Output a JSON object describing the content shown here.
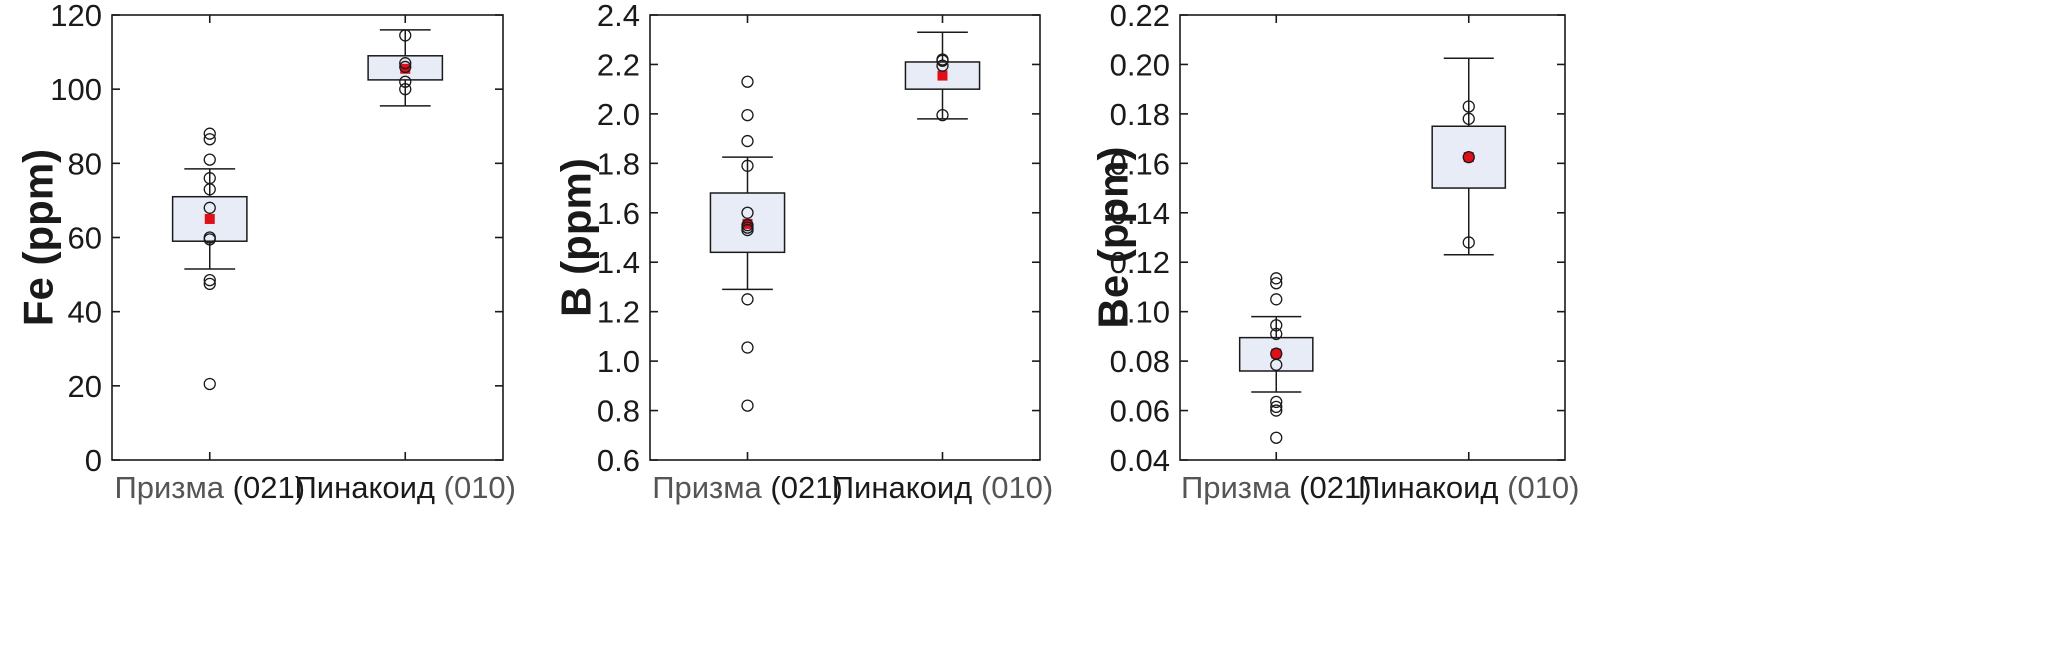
{
  "colors": {
    "box_fill": "#e7ecf6",
    "box_stroke": "#1a1a1a",
    "mean_marker": "#e0101a",
    "outlier_stroke": "#1a1a1a",
    "axis": "#1a1a1a",
    "category_a_text": "#555555"
  },
  "chart_data": [
    {
      "type": "box",
      "ylabel": "Fe (ppm)",
      "ylim": [
        0,
        120
      ],
      "yticks": [
        0,
        20,
        40,
        60,
        80,
        100,
        120
      ],
      "ytick_labels": [
        "0",
        "20",
        "40",
        "60",
        "80",
        "100",
        "120"
      ],
      "categories": [
        {
          "name": "Призма",
          "code": "(021)"
        },
        {
          "name": "Пинакоид",
          "code": "(010)"
        }
      ],
      "boxes": [
        {
          "whisker_low": 51.5,
          "q1": 59,
          "q3": 71,
          "whisker_high": 78.5,
          "mean": 65,
          "points": [
            20.5,
            47.5,
            48.5,
            59.5,
            60,
            68,
            73,
            76,
            81,
            86.5,
            88
          ]
        },
        {
          "whisker_low": 95.5,
          "q1": 102.5,
          "q3": 109,
          "whisker_high": 116,
          "mean": 105.5,
          "points": [
            100,
            102,
            106,
            107,
            114.5
          ]
        }
      ]
    },
    {
      "type": "box",
      "ylabel": "B (ppm)",
      "ylim": [
        0.6,
        2.4
      ],
      "yticks": [
        0.6,
        0.8,
        1.0,
        1.2,
        1.4,
        1.6,
        1.8,
        2.0,
        2.2,
        2.4
      ],
      "ytick_labels": [
        "0.6",
        "0.8",
        "1.0",
        "1.2",
        "1.4",
        "1.6",
        "1.8",
        "2.0",
        "2.2",
        "2.4"
      ],
      "categories": [
        {
          "name": "Призма",
          "code": "(021)"
        },
        {
          "name": "Пинакоид",
          "code": "(010)"
        }
      ],
      "boxes": [
        {
          "whisker_low": 1.29,
          "q1": 1.44,
          "q3": 1.68,
          "whisker_high": 1.825,
          "mean": 1.555,
          "points": [
            0.82,
            1.055,
            1.25,
            1.53,
            1.54,
            1.55,
            1.6,
            1.79,
            1.89,
            1.995,
            2.13
          ]
        },
        {
          "whisker_low": 1.98,
          "q1": 2.1,
          "q3": 2.21,
          "whisker_high": 2.33,
          "mean": 2.155,
          "points": [
            1.995,
            2.195,
            2.215,
            2.22
          ]
        }
      ]
    },
    {
      "type": "box",
      "ylabel": "Be (ppm)",
      "ylim": [
        0.04,
        0.22
      ],
      "yticks": [
        0.04,
        0.06,
        0.08,
        0.1,
        0.12,
        0.14,
        0.16,
        0.18,
        0.2,
        0.22
      ],
      "ytick_labels": [
        "0.04",
        "0.06",
        "0.08",
        "0.10",
        "0.12",
        "0.14",
        "0.16",
        "0.18",
        "0.20",
        "0.22"
      ],
      "categories": [
        {
          "name": "Призма",
          "code": "(021)"
        },
        {
          "name": "Пинакоид",
          "code": "(010)"
        }
      ],
      "boxes": [
        {
          "whisker_low": 0.0675,
          "q1": 0.076,
          "q3": 0.0895,
          "whisker_high": 0.098,
          "mean": 0.083,
          "points": [
            0.049,
            0.06,
            0.0615,
            0.0635,
            0.0785,
            0.083,
            0.091,
            0.0945,
            0.105,
            0.1115,
            0.1135
          ]
        },
        {
          "whisker_low": 0.123,
          "q1": 0.15,
          "q3": 0.175,
          "whisker_high": 0.2025,
          "mean": 0.1625,
          "points": [
            0.128,
            0.1625,
            0.178,
            0.183
          ]
        }
      ]
    }
  ]
}
